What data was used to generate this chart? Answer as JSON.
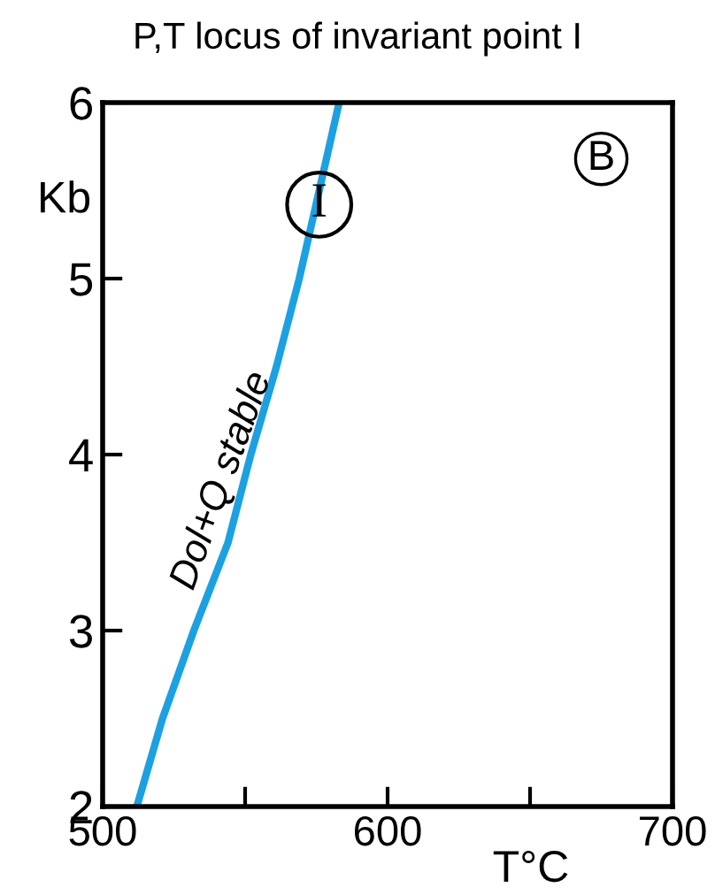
{
  "chart_data": {
    "type": "line",
    "title": "P,T locus of invariant point I",
    "xlabel": "T°C",
    "ylabel": "Kb",
    "x": [
      512,
      521,
      532,
      544,
      552,
      561,
      569,
      576,
      583
    ],
    "series": [
      {
        "color": "#1ba1e2",
        "values": [
          2,
          2.5,
          3,
          3.5,
          4,
          4.5,
          5,
          5.5,
          6
        ]
      }
    ],
    "xlim": [
      500,
      700
    ],
    "ylim": [
      2,
      6
    ],
    "xticks": [
      500,
      {
        "value": 550,
        "label": null
      },
      600,
      {
        "value": 650,
        "label": null
      },
      700
    ],
    "yticks": [
      2,
      3,
      4,
      5,
      6
    ],
    "annotations": [
      {
        "text": "I",
        "x": 576,
        "y": 5.42
      },
      "B",
      "Dol+Q stable"
    ],
    "grid": false,
    "legend": false,
    "marker": "none",
    "line_style": "solid"
  }
}
